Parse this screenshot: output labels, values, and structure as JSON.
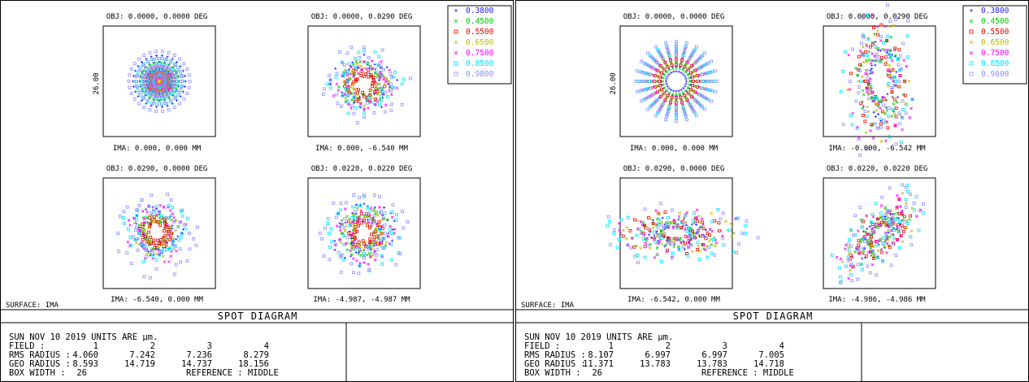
{
  "panels": [
    {
      "title": "SPOT DIAGRAM",
      "surface": "SURFACE: IMA",
      "box_scale_label": "26.00",
      "legend": [
        {
          "label": "0.3800",
          "color": "#1f1fff",
          "marker": "+"
        },
        {
          "label": "0.4500",
          "color": "#00cc00",
          "marker": "x"
        },
        {
          "label": "0.5500",
          "color": "#ee0000",
          "marker": "sq"
        },
        {
          "label": "0.6500",
          "color": "#bbbb00",
          "marker": "x"
        },
        {
          "label": "0.7500",
          "color": "#ff00ff",
          "marker": "x"
        },
        {
          "label": "0.8500",
          "color": "#00e0ff",
          "marker": "sq"
        },
        {
          "label": "0.9800",
          "color": "#9090ff",
          "marker": "sq"
        }
      ],
      "fields": [
        {
          "obj": "OBJ: 0.0000, 0.0000 DEG",
          "ima": "IMA: 0.000, 0.000 MM"
        },
        {
          "obj": "OBJ: 0.0000, 0.0290 DEG",
          "ima": "IMA: 0.000, -6.540 MM"
        },
        {
          "obj": "OBJ: 0.0290, 0.0000 DEG",
          "ima": "IMA: -6.540, 0.000 MM"
        },
        {
          "obj": "OBJ: 0.0220, 0.0220 DEG",
          "ima": "IMA: -4.987, -4.987 MM"
        }
      ],
      "footer": {
        "date_units": "SUN NOV 10 2019  UNITS ARE µm.",
        "field_label": "FIELD          :",
        "field_values": [
          "1",
          "2",
          "3",
          "4"
        ],
        "rms_label": "RMS RADIUS :",
        "rms_values": [
          "4.060",
          "7.242",
          "7.236",
          "8.279"
        ],
        "geo_label": "GEO RADIUS :",
        "geo_values": [
          "8.593",
          "14.719",
          "14.737",
          "18.156"
        ],
        "box_label": "BOX WIDTH    :",
        "box_value": "26",
        "reference": "REFERENCE  : MIDDLE"
      }
    },
    {
      "title": "SPOT DIAGRAM",
      "surface": "SURFACE: IMA",
      "box_scale_label": "26.00",
      "legend": [
        {
          "label": "0.3800",
          "color": "#1f1fff",
          "marker": "+"
        },
        {
          "label": "0.4500",
          "color": "#00cc00",
          "marker": "x"
        },
        {
          "label": "0.5500",
          "color": "#ee0000",
          "marker": "sq"
        },
        {
          "label": "0.6500",
          "color": "#bbbb00",
          "marker": "x"
        },
        {
          "label": "0.7500",
          "color": "#ff00ff",
          "marker": "x"
        },
        {
          "label": "0.8500",
          "color": "#00e0ff",
          "marker": "sq"
        },
        {
          "label": "0.9800",
          "color": "#9090ff",
          "marker": "sq"
        }
      ],
      "fields": [
        {
          "obj": "OBJ: 0.0000, 0.0000 DEG",
          "ima": "IMA: 0.000, 0.000 MM"
        },
        {
          "obj": "OBJ: 0.0000, 0.0290 DEG",
          "ima": "IMA: -0.000, -6.542 MM"
        },
        {
          "obj": "OBJ: 0.0290, 0.0000 DEG",
          "ima": "IMA: -6.542, 0.000 MM"
        },
        {
          "obj": "OBJ: 0.0220, 0.0220 DEG",
          "ima": "IMA: -4.986, -4.986 MM"
        }
      ],
      "footer": {
        "date_units": "SUN NOV 10 2019  UNITS ARE µm.",
        "field_label": "FIELD          :",
        "field_values": [
          "1",
          "2",
          "3",
          "4"
        ],
        "rms_label": "RMS RADIUS :",
        "rms_values": [
          "8.107",
          "6.997",
          "6.997",
          "7.005"
        ],
        "geo_label": "GEO RADIUS :",
        "geo_values": [
          "11.371",
          "13.783",
          "13.783",
          "14.718"
        ],
        "box_label": "BOX WIDTH    :",
        "box_value": "26",
        "reference": "REFERENCE  : MIDDLE"
      }
    }
  ],
  "chart_data": [
    {
      "type": "scatter",
      "title": "SPOT DIAGRAM",
      "units": "µm",
      "box_width": 26,
      "wavelengths": [
        "0.3800",
        "0.4500",
        "0.5500",
        "0.6500",
        "0.7500",
        "0.8500",
        "0.9800"
      ],
      "fields": [
        1,
        2,
        3,
        4
      ],
      "rms_radius": [
        4.06,
        7.242,
        7.236,
        8.279
      ],
      "geo_radius": [
        8.593,
        14.719,
        14.737,
        18.156
      ],
      "reference": "MIDDLE"
    },
    {
      "type": "scatter",
      "title": "SPOT DIAGRAM",
      "units": "µm",
      "box_width": 26,
      "wavelengths": [
        "0.3800",
        "0.4500",
        "0.5500",
        "0.6500",
        "0.7500",
        "0.8500",
        "0.9800"
      ],
      "fields": [
        1,
        2,
        3,
        4
      ],
      "rms_radius": [
        8.107,
        6.997,
        6.997,
        7.005
      ],
      "geo_radius": [
        11.371,
        13.783,
        13.783,
        14.718
      ],
      "reference": "MIDDLE"
    }
  ]
}
